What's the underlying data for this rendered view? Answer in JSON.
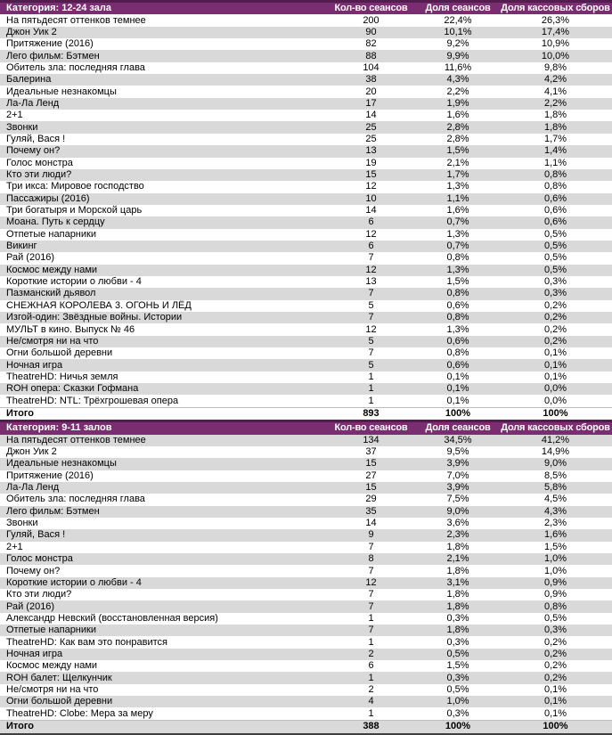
{
  "report": {
    "columns": {
      "sessions": "Кол-во сеансов",
      "session_share": "Доля сеансов",
      "box_office_share": "Доля кассовых сборов"
    },
    "total_label": "Итого",
    "sections": [
      {
        "category_label": "Категория: 12-24 зала",
        "first_row_shaded": false,
        "total_shaded": false,
        "rows": [
          {
            "title": "На пятьдесят оттенков темнее",
            "sessions": "200",
            "session_share": "22,4%",
            "box_office_share": "26,3%"
          },
          {
            "title": "Джон Уик 2",
            "sessions": "90",
            "session_share": "10,1%",
            "box_office_share": "17,4%"
          },
          {
            "title": "Притяжение (2016)",
            "sessions": "82",
            "session_share": "9,2%",
            "box_office_share": "10,9%"
          },
          {
            "title": "Лего фильм: Бэтмен",
            "sessions": "88",
            "session_share": "9,9%",
            "box_office_share": "10,0%"
          },
          {
            "title": "Обитель зла: последняя глава",
            "sessions": "104",
            "session_share": "11,6%",
            "box_office_share": "9,8%"
          },
          {
            "title": "Балерина",
            "sessions": "38",
            "session_share": "4,3%",
            "box_office_share": "4,2%"
          },
          {
            "title": "Идеальные незнакомцы",
            "sessions": "20",
            "session_share": "2,2%",
            "box_office_share": "4,1%"
          },
          {
            "title": "Ла-Ла Ленд",
            "sessions": "17",
            "session_share": "1,9%",
            "box_office_share": "2,2%"
          },
          {
            "title": "2+1",
            "sessions": "14",
            "session_share": "1,6%",
            "box_office_share": "1,8%"
          },
          {
            "title": "Звонки",
            "sessions": "25",
            "session_share": "2,8%",
            "box_office_share": "1,8%"
          },
          {
            "title": "Гуляй, Вася !",
            "sessions": "25",
            "session_share": "2,8%",
            "box_office_share": "1,7%"
          },
          {
            "title": "Почему он?",
            "sessions": "13",
            "session_share": "1,5%",
            "box_office_share": "1,4%"
          },
          {
            "title": "Голос монстра",
            "sessions": "19",
            "session_share": "2,1%",
            "box_office_share": "1,1%"
          },
          {
            "title": "Кто эти люди?",
            "sessions": "15",
            "session_share": "1,7%",
            "box_office_share": "0,8%"
          },
          {
            "title": "Три икса: Мировое господство",
            "sessions": "12",
            "session_share": "1,3%",
            "box_office_share": "0,8%"
          },
          {
            "title": "Пассажиры (2016)",
            "sessions": "10",
            "session_share": "1,1%",
            "box_office_share": "0,6%"
          },
          {
            "title": "Три богатыря и Морской царь",
            "sessions": "14",
            "session_share": "1,6%",
            "box_office_share": "0,6%"
          },
          {
            "title": "Моана. Путь к сердцу",
            "sessions": "6",
            "session_share": "0,7%",
            "box_office_share": "0,6%"
          },
          {
            "title": "Отпетые напарники",
            "sessions": "12",
            "session_share": "1,3%",
            "box_office_share": "0,5%"
          },
          {
            "title": "Викинг",
            "sessions": "6",
            "session_share": "0,7%",
            "box_office_share": "0,5%"
          },
          {
            "title": "Рай (2016)",
            "sessions": "7",
            "session_share": "0,8%",
            "box_office_share": "0,5%"
          },
          {
            "title": "Космос между нами",
            "sessions": "12",
            "session_share": "1,3%",
            "box_office_share": "0,5%"
          },
          {
            "title": "Короткие истории о любви - 4",
            "sessions": "13",
            "session_share": "1,5%",
            "box_office_share": "0,3%"
          },
          {
            "title": "Пазманский дьявол",
            "sessions": "7",
            "session_share": "0,8%",
            "box_office_share": "0,3%"
          },
          {
            "title": "СНЕЖНАЯ КОРОЛЕВА 3. ОГОНЬ И ЛЁД",
            "sessions": "5",
            "session_share": "0,6%",
            "box_office_share": "0,2%"
          },
          {
            "title": "Изгой-один: Звёздные войны. Истории",
            "sessions": "7",
            "session_share": "0,8%",
            "box_office_share": "0,2%"
          },
          {
            "title": "МУЛЬТ в кино. Выпуск № 46",
            "sessions": "12",
            "session_share": "1,3%",
            "box_office_share": "0,2%"
          },
          {
            "title": "Не/смотря ни на что",
            "sessions": "5",
            "session_share": "0,6%",
            "box_office_share": "0,2%"
          },
          {
            "title": "Огни большой деревни",
            "sessions": "7",
            "session_share": "0,8%",
            "box_office_share": "0,1%"
          },
          {
            "title": "Ночная игра",
            "sessions": "5",
            "session_share": "0,6%",
            "box_office_share": "0,1%"
          },
          {
            "title": "TheatreHD: Ничья земля",
            "sessions": "1",
            "session_share": "0,1%",
            "box_office_share": "0,1%"
          },
          {
            "title": "ROH опера: Сказки Гофмана",
            "sessions": "1",
            "session_share": "0,1%",
            "box_office_share": "0,0%"
          },
          {
            "title": "TheatreHD: NTL: Трёхгрошевая опера",
            "sessions": "1",
            "session_share": "0,1%",
            "box_office_share": "0,0%"
          }
        ],
        "total": {
          "sessions": "893",
          "session_share": "100%",
          "box_office_share": "100%"
        }
      },
      {
        "category_label": "Категория: 9-11 залов",
        "first_row_shaded": true,
        "total_shaded": true,
        "rows": [
          {
            "title": "На пятьдесят оттенков темнее",
            "sessions": "134",
            "session_share": "34,5%",
            "box_office_share": "41,2%"
          },
          {
            "title": "Джон Уик 2",
            "sessions": "37",
            "session_share": "9,5%",
            "box_office_share": "14,9%"
          },
          {
            "title": "Идеальные незнакомцы",
            "sessions": "15",
            "session_share": "3,9%",
            "box_office_share": "9,0%"
          },
          {
            "title": "Притяжение (2016)",
            "sessions": "27",
            "session_share": "7,0%",
            "box_office_share": "8,5%"
          },
          {
            "title": "Ла-Ла Ленд",
            "sessions": "15",
            "session_share": "3,9%",
            "box_office_share": "5,8%"
          },
          {
            "title": "Обитель зла: последняя глава",
            "sessions": "29",
            "session_share": "7,5%",
            "box_office_share": "4,5%"
          },
          {
            "title": "Лего фильм: Бэтмен",
            "sessions": "35",
            "session_share": "9,0%",
            "box_office_share": "4,3%"
          },
          {
            "title": "Звонки",
            "sessions": "14",
            "session_share": "3,6%",
            "box_office_share": "2,3%"
          },
          {
            "title": "Гуляй, Вася !",
            "sessions": "9",
            "session_share": "2,3%",
            "box_office_share": "1,6%"
          },
          {
            "title": "2+1",
            "sessions": "7",
            "session_share": "1,8%",
            "box_office_share": "1,5%"
          },
          {
            "title": "Голос монстра",
            "sessions": "8",
            "session_share": "2,1%",
            "box_office_share": "1,0%"
          },
          {
            "title": "Почему он?",
            "sessions": "7",
            "session_share": "1,8%",
            "box_office_share": "1,0%"
          },
          {
            "title": "Короткие истории о любви - 4",
            "sessions": "12",
            "session_share": "3,1%",
            "box_office_share": "0,9%"
          },
          {
            "title": "Кто эти люди?",
            "sessions": "7",
            "session_share": "1,8%",
            "box_office_share": "0,9%"
          },
          {
            "title": "Рай (2016)",
            "sessions": "7",
            "session_share": "1,8%",
            "box_office_share": "0,8%"
          },
          {
            "title": "Александр Невский (восстановленная версия)",
            "sessions": "1",
            "session_share": "0,3%",
            "box_office_share": "0,5%"
          },
          {
            "title": "Отпетые напарники",
            "sessions": "7",
            "session_share": "1,8%",
            "box_office_share": "0,3%"
          },
          {
            "title": "TheatreHD: Как вам это понравится",
            "sessions": "1",
            "session_share": "0,3%",
            "box_office_share": "0,2%"
          },
          {
            "title": "Ночная игра",
            "sessions": "2",
            "session_share": "0,5%",
            "box_office_share": "0,2%"
          },
          {
            "title": "Космос между нами",
            "sessions": "6",
            "session_share": "1,5%",
            "box_office_share": "0,2%"
          },
          {
            "title": "ROH балет: Щелкунчик",
            "sessions": "1",
            "session_share": "0,3%",
            "box_office_share": "0,2%"
          },
          {
            "title": "Не/смотря ни на что",
            "sessions": "2",
            "session_share": "0,5%",
            "box_office_share": "0,1%"
          },
          {
            "title": "Огни большой деревни",
            "sessions": "4",
            "session_share": "1,0%",
            "box_office_share": "0,1%"
          },
          {
            "title": "TheatreHD: Clobe: Мера за меру",
            "sessions": "1",
            "session_share": "0,3%",
            "box_office_share": "0,1%"
          }
        ],
        "total": {
          "sessions": "388",
          "session_share": "100%",
          "box_office_share": "100%"
        }
      }
    ]
  },
  "colors": {
    "header_bg": "#7B2D72",
    "header_border": "#521C4E",
    "stripe": "#D9D9D9",
    "total_border": "#BFBFBF",
    "bottom_border": "#3F3F3F",
    "header_text": "#FFFFFF",
    "body_text": "#000000"
  }
}
